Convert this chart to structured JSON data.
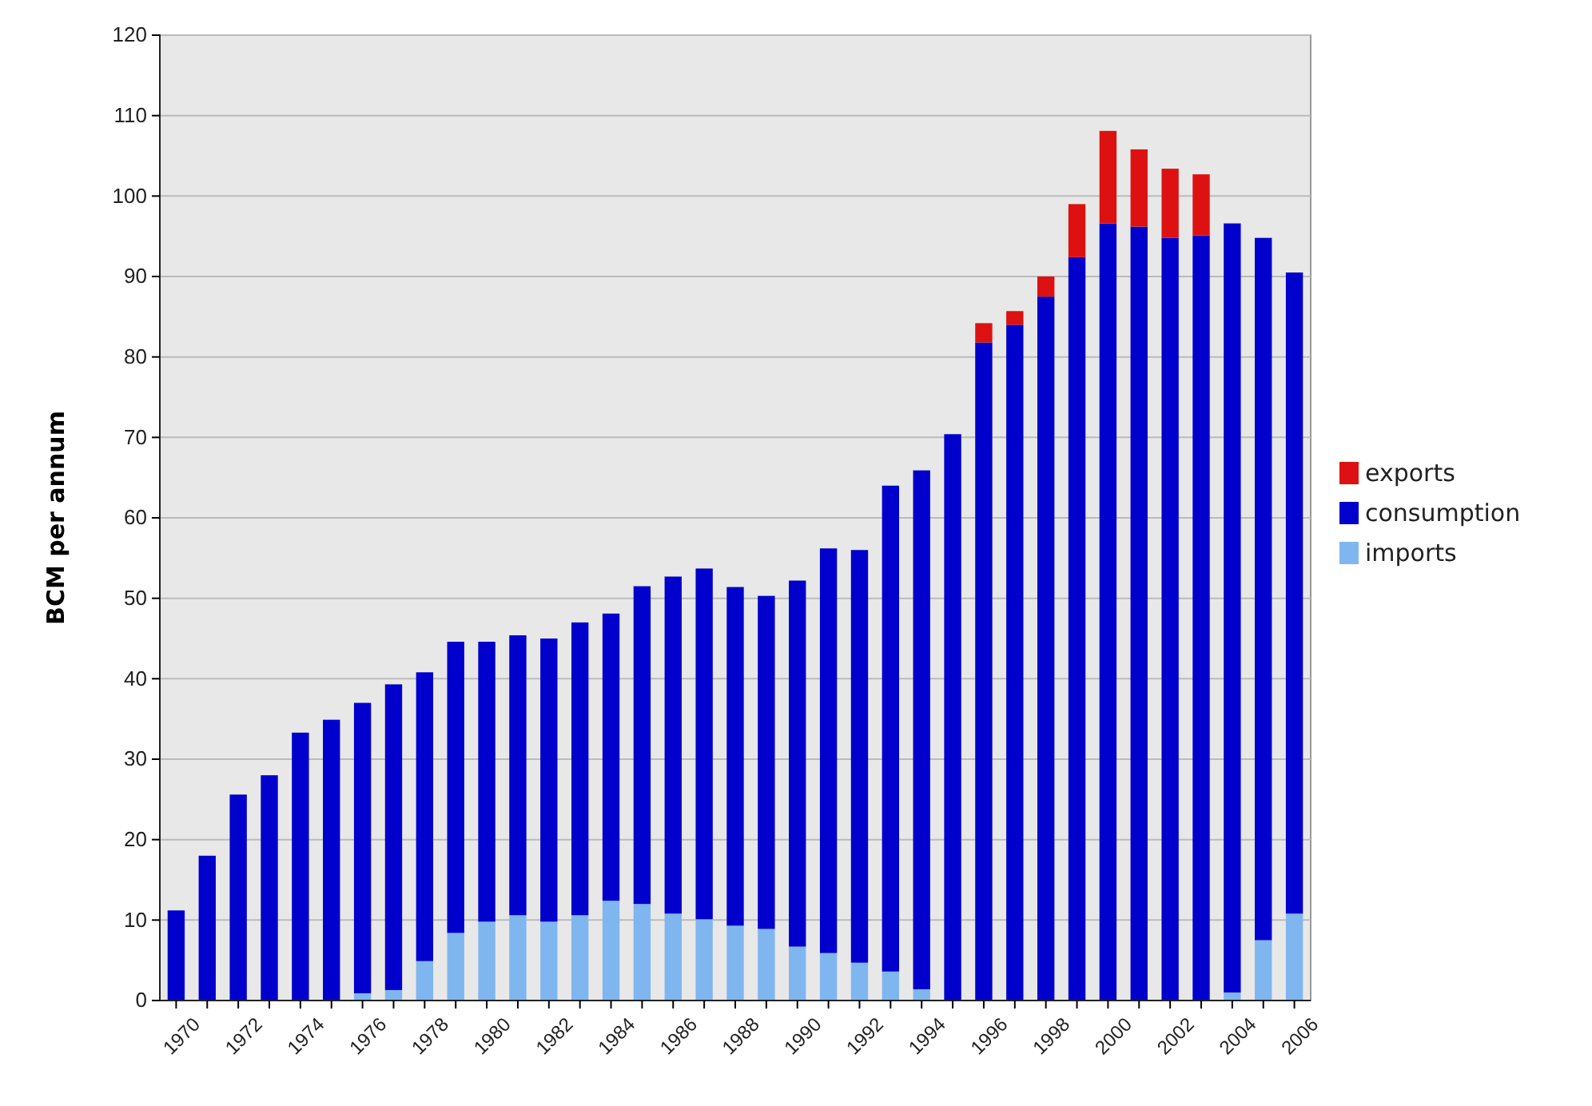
{
  "chart_data": {
    "type": "bar",
    "stacked": true,
    "ylabel": "BCM per annum",
    "categories": [
      "1970",
      null,
      "1972",
      null,
      "1974",
      null,
      "1976",
      null,
      "1978",
      null,
      "1980",
      null,
      "1982",
      null,
      "1984",
      null,
      "1986",
      null,
      "1988",
      null,
      "1990",
      null,
      "1992",
      null,
      "1994",
      null,
      "1996",
      null,
      "1998",
      null,
      "2000",
      null,
      "2002",
      null,
      "2004",
      null,
      "2006"
    ],
    "series": [
      {
        "name": "imports",
        "color": "#7fb6f0",
        "values": [
          0,
          0,
          0,
          0,
          0,
          0,
          0.9,
          1.3,
          4.9,
          8.4,
          9.8,
          10.6,
          9.8,
          10.6,
          12.4,
          12,
          10.8,
          10.1,
          9.3,
          8.9,
          6.7,
          5.9,
          4.7,
          3.6,
          1.4,
          0,
          0,
          0,
          0,
          0,
          0,
          0,
          0,
          0,
          1,
          7.5,
          10.8
        ]
      },
      {
        "name": "consumption",
        "color": "#0000cc",
        "values": [
          11.2,
          18,
          25.6,
          28,
          33.3,
          34.9,
          36.1,
          38,
          35.9,
          36.2,
          34.8,
          34.8,
          35.2,
          36.4,
          35.7,
          39.5,
          41.9,
          43.6,
          42.1,
          41.4,
          45.5,
          50.3,
          51.3,
          60.4,
          64.5,
          70.4,
          81.8,
          84,
          87.5,
          92.4,
          96.6,
          96.2,
          94.8,
          95.1,
          95.6,
          87.3,
          79.7
        ]
      },
      {
        "name": "exports",
        "color": "#dd1111",
        "values": [
          0,
          0,
          0,
          0,
          0,
          0,
          0,
          0,
          0,
          0,
          0,
          0,
          0,
          0,
          0,
          0,
          0,
          0,
          0,
          0,
          0,
          0,
          0,
          0,
          0,
          0,
          2.4,
          1.7,
          2.5,
          6.6,
          11.5,
          9.6,
          8.6,
          7.6,
          0,
          0,
          0
        ]
      }
    ],
    "ylim": [
      0,
      120
    ],
    "yticks": [
      0,
      10,
      20,
      30,
      40,
      50,
      60,
      70,
      80,
      90,
      100,
      110,
      120
    ],
    "grid": "y",
    "legend": "right"
  }
}
